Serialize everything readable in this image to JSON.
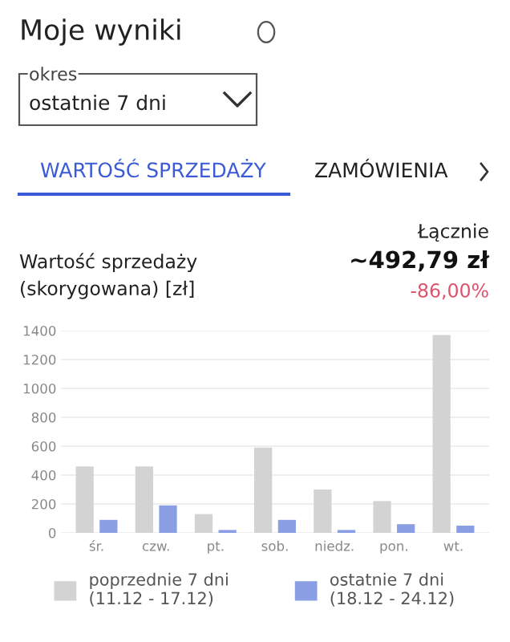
{
  "chart_data": {
    "type": "bar",
    "title": "Moje wyniki",
    "ylabel": "Wartość sprzedaży\n(skorygowana) [zł]",
    "annotations": [
      "okres",
      "ostatnie 7 dni",
      "WARTOŚĆ SPRZEDAŻY",
      "ZAMÓWIENIA",
      "Łącznie",
      "~492,79 zł",
      "-86,00%"
    ],
    "categories": [
      "śr.",
      "czw.",
      "pt.",
      "sob.",
      "niedz.",
      "pon.",
      "wt."
    ],
    "series": [
      {
        "name": "poprzednie 7 dni\n(11.12 - 17.12)",
        "color": "#d3d3d3",
        "values": [
          460,
          460,
          130,
          590,
          300,
          220,
          1370
        ]
      },
      {
        "name": "ostatnie 7 dni\n(18.12 - 24.12)",
        "color": "#8a9fe3",
        "values": [
          90,
          190,
          20,
          90,
          20,
          60,
          50
        ]
      }
    ],
    "ylim": [
      0,
      1400
    ],
    "yticks": [
      0,
      200,
      400,
      600,
      800,
      1000,
      1200,
      1400
    ],
    "grid": "y",
    "legend": "bottom"
  }
}
